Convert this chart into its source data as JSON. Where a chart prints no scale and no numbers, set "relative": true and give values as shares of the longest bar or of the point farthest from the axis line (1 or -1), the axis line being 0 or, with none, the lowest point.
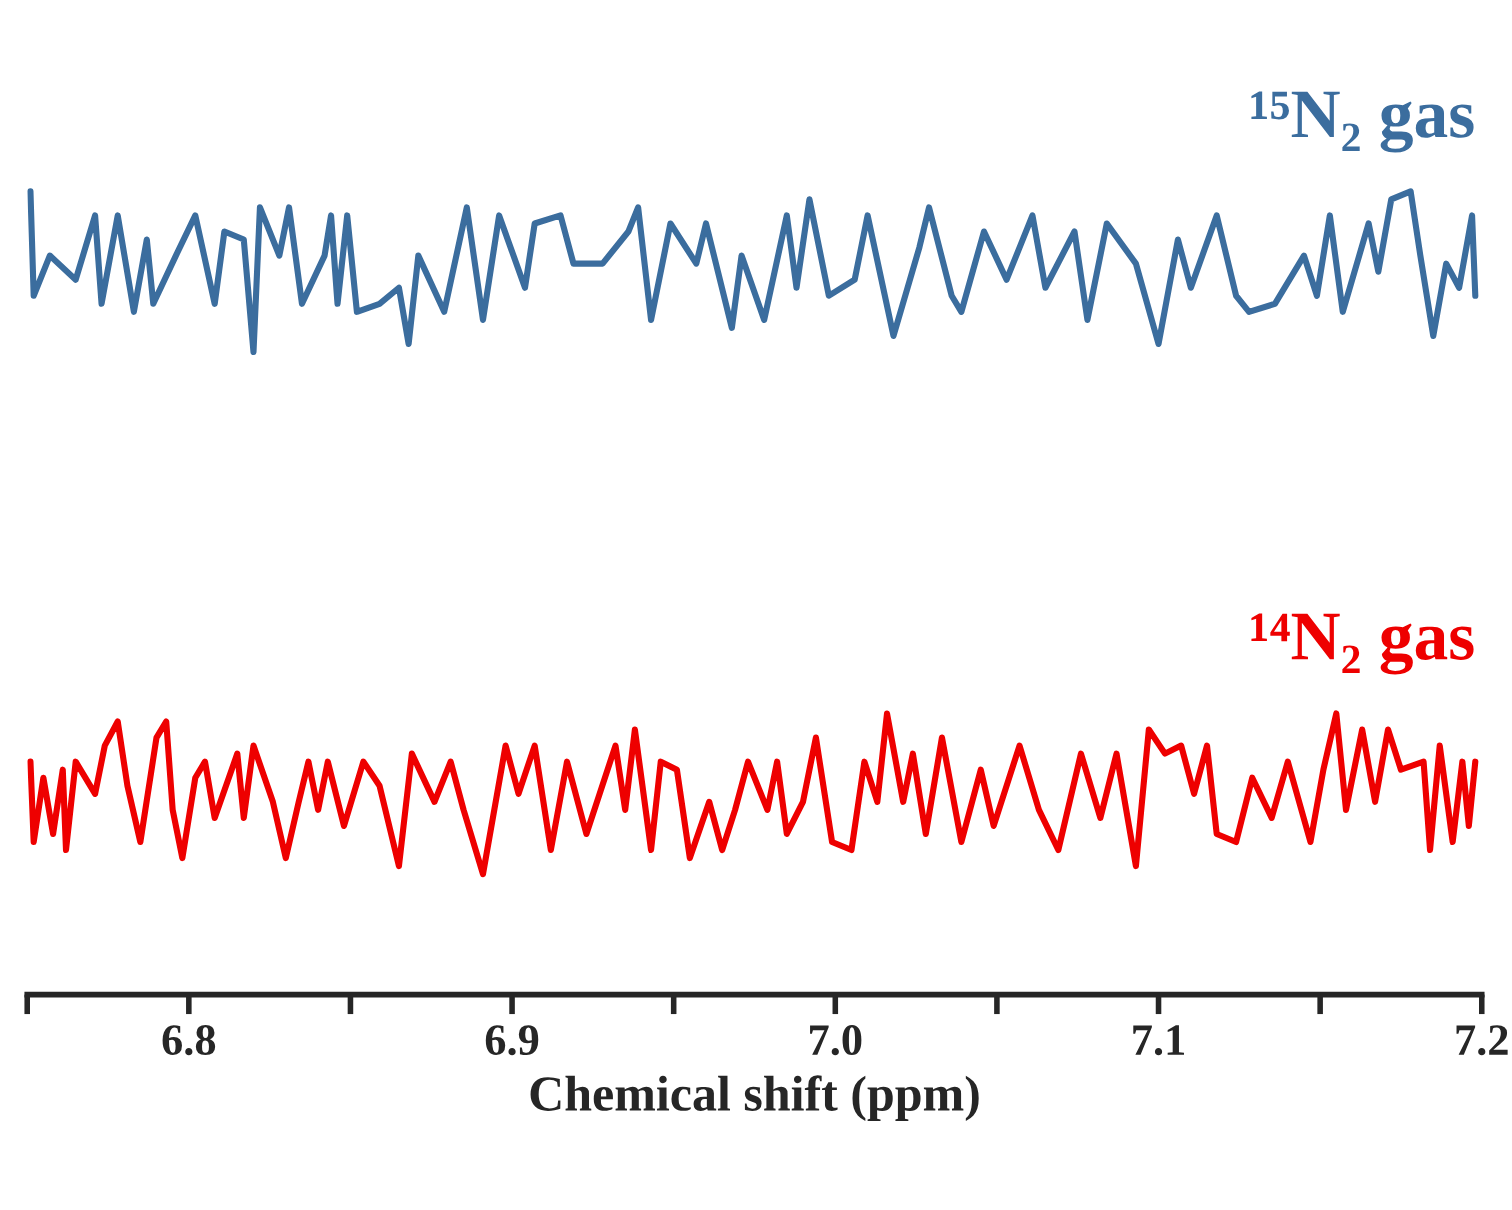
{
  "chart_data": {
    "type": "line",
    "relative": true,
    "xlabel": "Chemical shift (ppm)",
    "xlim": [
      6.75,
      7.2
    ],
    "xticks": [
      {
        "value": 6.75,
        "label": null
      },
      {
        "value": 6.8,
        "label": "6.8"
      },
      {
        "value": 6.85,
        "label": null
      },
      {
        "value": 6.9,
        "label": "6.9"
      },
      {
        "value": 6.95,
        "label": null
      },
      {
        "value": 7.0,
        "label": "7.0"
      },
      {
        "value": 7.05,
        "label": null
      },
      {
        "value": 7.1,
        "label": "7.1"
      },
      {
        "value": 7.15,
        "label": null
      },
      {
        "value": 7.2,
        "label": "7.2"
      }
    ],
    "tick_labels": "x",
    "grid": false,
    "legend": false,
    "marker": "none",
    "line_style": "solid",
    "series": [
      {
        "name": "¹⁵N₂ gas",
        "color": "#3b6d9e",
        "x": [
          6.751,
          6.752,
          6.757,
          6.765,
          6.771,
          6.773,
          6.778,
          6.783,
          6.787,
          6.789,
          6.796,
          6.802,
          6.808,
          6.811,
          6.817,
          6.82,
          6.822,
          6.828,
          6.831,
          6.835,
          6.842,
          6.844,
          6.846,
          6.849,
          6.852,
          6.859,
          6.865,
          6.868,
          6.871,
          6.879,
          6.886,
          6.891,
          6.896,
          6.904,
          6.907,
          6.915,
          6.919,
          6.928,
          6.936,
          6.939,
          6.943,
          6.949,
          6.957,
          6.96,
          6.968,
          6.971,
          6.978,
          6.985,
          6.988,
          6.992,
          6.998,
          7.006,
          7.01,
          7.018,
          7.026,
          7.029,
          7.036,
          7.039,
          7.046,
          7.053,
          7.061,
          7.065,
          7.074,
          7.078,
          7.084,
          7.093,
          7.1,
          7.106,
          7.11,
          7.118,
          7.124,
          7.128,
          7.136,
          7.145,
          7.149,
          7.153,
          7.157,
          7.165,
          7.168,
          7.172,
          7.178,
          7.181,
          7.185,
          7.189,
          7.193,
          7.197,
          7.198
        ],
        "values": [
          1.0,
          0.87,
          0.92,
          0.89,
          0.97,
          0.86,
          0.97,
          0.85,
          0.94,
          0.86,
          0.92,
          0.97,
          0.86,
          0.95,
          0.94,
          0.8,
          0.98,
          0.92,
          0.98,
          0.86,
          0.92,
          0.97,
          0.86,
          0.97,
          0.85,
          0.86,
          0.88,
          0.81,
          0.92,
          0.85,
          0.98,
          0.84,
          0.97,
          0.88,
          0.96,
          0.97,
          0.91,
          0.91,
          0.95,
          0.98,
          0.84,
          0.96,
          0.91,
          0.96,
          0.83,
          0.92,
          0.84,
          0.97,
          0.88,
          0.99,
          0.87,
          0.89,
          0.97,
          0.82,
          0.93,
          0.98,
          0.87,
          0.85,
          0.95,
          0.89,
          0.97,
          0.88,
          0.95,
          0.84,
          0.96,
          0.91,
          0.81,
          0.94,
          0.88,
          0.97,
          0.87,
          0.85,
          0.86,
          0.92,
          0.87,
          0.97,
          0.85,
          0.96,
          0.9,
          0.99,
          1.0,
          0.92,
          0.82,
          0.91,
          0.88,
          0.97,
          0.87
        ]
      },
      {
        "name": "¹⁴N₂ gas",
        "color": "#ee0000",
        "x": [
          6.751,
          6.752,
          6.755,
          6.758,
          6.761,
          6.762,
          6.765,
          6.771,
          6.774,
          6.778,
          6.781,
          6.785,
          6.79,
          6.793,
          6.795,
          6.798,
          6.802,
          6.805,
          6.808,
          6.815,
          6.817,
          6.82,
          6.826,
          6.83,
          6.834,
          6.837,
          6.84,
          6.843,
          6.848,
          6.854,
          6.859,
          6.865,
          6.869,
          6.876,
          6.881,
          6.885,
          6.891,
          6.898,
          6.902,
          6.907,
          6.912,
          6.917,
          6.923,
          6.932,
          6.935,
          6.938,
          6.943,
          6.946,
          6.951,
          6.955,
          6.961,
          6.965,
          6.969,
          6.973,
          6.979,
          6.982,
          6.985,
          6.99,
          6.994,
          6.999,
          7.005,
          7.009,
          7.013,
          7.016,
          7.021,
          7.024,
          7.028,
          7.033,
          7.039,
          7.045,
          7.049,
          7.057,
          7.063,
          7.069,
          7.076,
          7.082,
          7.087,
          7.093,
          7.097,
          7.102,
          7.107,
          7.111,
          7.115,
          7.118,
          7.124,
          7.129,
          7.135,
          7.14,
          7.147,
          7.151,
          7.155,
          7.158,
          7.163,
          7.167,
          7.171,
          7.175,
          7.182,
          7.184,
          7.187,
          7.191,
          7.194,
          7.196,
          7.198
        ],
        "values": [
          0.29,
          0.19,
          0.27,
          0.2,
          0.28,
          0.18,
          0.29,
          0.25,
          0.31,
          0.34,
          0.26,
          0.19,
          0.32,
          0.34,
          0.23,
          0.17,
          0.27,
          0.29,
          0.22,
          0.3,
          0.22,
          0.31,
          0.24,
          0.17,
          0.24,
          0.29,
          0.23,
          0.29,
          0.21,
          0.29,
          0.26,
          0.16,
          0.3,
          0.24,
          0.29,
          0.23,
          0.15,
          0.31,
          0.25,
          0.31,
          0.18,
          0.29,
          0.2,
          0.31,
          0.23,
          0.33,
          0.18,
          0.29,
          0.28,
          0.17,
          0.24,
          0.18,
          0.23,
          0.29,
          0.23,
          0.29,
          0.2,
          0.24,
          0.32,
          0.19,
          0.18,
          0.29,
          0.24,
          0.35,
          0.24,
          0.3,
          0.2,
          0.32,
          0.19,
          0.28,
          0.21,
          0.31,
          0.23,
          0.18,
          0.3,
          0.22,
          0.3,
          0.16,
          0.33,
          0.3,
          0.31,
          0.25,
          0.31,
          0.2,
          0.19,
          0.27,
          0.22,
          0.29,
          0.19,
          0.28,
          0.35,
          0.23,
          0.33,
          0.24,
          0.33,
          0.28,
          0.29,
          0.18,
          0.31,
          0.19,
          0.29,
          0.21,
          0.29
        ]
      }
    ]
  }
}
